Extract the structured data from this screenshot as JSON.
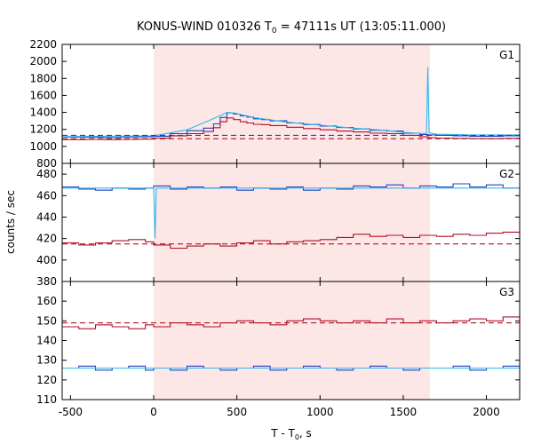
{
  "chart_data": {
    "type": "line",
    "title": {
      "prefix": "KONUS-WIND 010326 T",
      "sub": "0",
      "suffix": " = 47111s UT (13:05:11.000)"
    },
    "xlabel": {
      "prefix": "T - T",
      "sub": "0",
      "suffix": ", s"
    },
    "ylabel": "counts / sec",
    "xlim": [
      -550,
      2200
    ],
    "xticks": [
      -500,
      0,
      500,
      1000,
      1500,
      2000
    ],
    "xtick_labels": [
      "-500",
      "0",
      "500",
      "1000",
      "1500",
      "2000"
    ],
    "highlight_interval": [
      0,
      1660
    ],
    "highlight_color": "#fde6e6",
    "grid": false,
    "panels": [
      {
        "name": "G1",
        "ylim": [
          800,
          2200
        ],
        "yticks": [
          800,
          1000,
          1200,
          1400,
          1600,
          1800,
          2000,
          2200
        ],
        "ytick_labels": [
          "800",
          "1000",
          "1200",
          "1400",
          "1600",
          "1800",
          "2000",
          "2200"
        ],
        "series": [
          {
            "color": "#2040c0",
            "step": true,
            "points": [
              [
                -550,
                1110
              ],
              [
                -400,
                1108
              ],
              [
                -300,
                1105
              ],
              [
                -200,
                1110
              ],
              [
                -100,
                1112
              ],
              [
                0,
                1120
              ],
              [
                100,
                1150
              ],
              [
                200,
                1185
              ],
              [
                300,
                1215
              ],
              [
                360,
                1265
              ],
              [
                400,
                1340
              ],
              [
                440,
                1395
              ],
              [
                480,
                1380
              ],
              [
                520,
                1360
              ],
              [
                560,
                1345
              ],
              [
                600,
                1325
              ],
              [
                650,
                1315
              ],
              [
                700,
                1300
              ],
              [
                800,
                1275
              ],
              [
                900,
                1258
              ],
              [
                1000,
                1240
              ],
              [
                1100,
                1222
              ],
              [
                1200,
                1205
              ],
              [
                1300,
                1190
              ],
              [
                1400,
                1180
              ],
              [
                1500,
                1155
              ],
              [
                1600,
                1140
              ],
              [
                1650,
                1135
              ],
              [
                1700,
                1130
              ],
              [
                1800,
                1125
              ],
              [
                1900,
                1120
              ],
              [
                2000,
                1120
              ],
              [
                2100,
                1125
              ],
              [
                2200,
                1120
              ]
            ]
          },
          {
            "color": "#b01028",
            "step": true,
            "points": [
              [
                -550,
                1080
              ],
              [
                -400,
                1082
              ],
              [
                -300,
                1080
              ],
              [
                -200,
                1082
              ],
              [
                -100,
                1085
              ],
              [
                0,
                1098
              ],
              [
                100,
                1125
              ],
              [
                200,
                1150
              ],
              [
                300,
                1175
              ],
              [
                360,
                1220
              ],
              [
                400,
                1290
              ],
              [
                440,
                1335
              ],
              [
                480,
                1315
              ],
              [
                520,
                1290
              ],
              [
                560,
                1275
              ],
              [
                600,
                1260
              ],
              [
                650,
                1255
              ],
              [
                700,
                1245
              ],
              [
                800,
                1225
              ],
              [
                900,
                1210
              ],
              [
                1000,
                1195
              ],
              [
                1100,
                1180
              ],
              [
                1200,
                1170
              ],
              [
                1300,
                1155
              ],
              [
                1400,
                1150
              ],
              [
                1500,
                1130
              ],
              [
                1600,
                1112
              ],
              [
                1650,
                1102
              ],
              [
                1700,
                1098
              ],
              [
                1800,
                1095
              ],
              [
                1900,
                1092
              ],
              [
                2000,
                1090
              ],
              [
                2100,
                1095
              ],
              [
                2200,
                1092
              ]
            ]
          },
          {
            "color": "#30b8e8",
            "step": false,
            "points": [
              [
                -550,
                1115
              ],
              [
                0,
                1125
              ],
              [
                200,
                1195
              ],
              [
                400,
                1360
              ],
              [
                440,
                1400
              ],
              [
                480,
                1395
              ],
              [
                600,
                1340
              ],
              [
                800,
                1285
              ],
              [
                1000,
                1250
              ],
              [
                1200,
                1215
              ],
              [
                1400,
                1188
              ],
              [
                1500,
                1165
              ],
              [
                1640,
                1150
              ],
              [
                1648,
                1930
              ],
              [
                1656,
                1160
              ],
              [
                1700,
                1145
              ],
              [
                1900,
                1135
              ],
              [
                2200,
                1135
              ]
            ]
          },
          {
            "color": "#2040c0",
            "dashed": true,
            "points": [
              [
                -550,
                1130
              ],
              [
                2200,
                1130
              ]
            ]
          },
          {
            "color": "#b01028",
            "dashed": true,
            "points": [
              [
                -550,
                1090
              ],
              [
                2200,
                1090
              ]
            ]
          }
        ]
      },
      {
        "name": "G2",
        "ylim": [
          380,
          490
        ],
        "yticks": [
          380,
          400,
          420,
          440,
          460,
          480
        ],
        "ytick_labels": [
          "380",
          "400",
          "420",
          "440",
          "460",
          "480"
        ],
        "series": [
          {
            "color": "#2040c0",
            "step": true,
            "points": [
              [
                -550,
                468
              ],
              [
                -450,
                466
              ],
              [
                -350,
                465
              ],
              [
                -250,
                467
              ],
              [
                -150,
                466
              ],
              [
                -50,
                467
              ],
              [
                0,
                469
              ],
              [
                100,
                466
              ],
              [
                200,
                468
              ],
              [
                300,
                467
              ],
              [
                400,
                468
              ],
              [
                500,
                465
              ],
              [
                600,
                467
              ],
              [
                700,
                466
              ],
              [
                800,
                468
              ],
              [
                900,
                465
              ],
              [
                1000,
                467
              ],
              [
                1100,
                466
              ],
              [
                1200,
                469
              ],
              [
                1300,
                468
              ],
              [
                1400,
                470
              ],
              [
                1500,
                467
              ],
              [
                1600,
                469
              ],
              [
                1700,
                468
              ],
              [
                1800,
                471
              ],
              [
                1900,
                468
              ],
              [
                2000,
                470
              ],
              [
                2100,
                467
              ],
              [
                2200,
                469
              ]
            ]
          },
          {
            "color": "#b01028",
            "step": true,
            "points": [
              [
                -550,
                416
              ],
              [
                -450,
                414
              ],
              [
                -350,
                416
              ],
              [
                -250,
                418
              ],
              [
                -150,
                419
              ],
              [
                -50,
                417
              ],
              [
                0,
                414
              ],
              [
                100,
                411
              ],
              [
                200,
                413
              ],
              [
                300,
                415
              ],
              [
                400,
                413
              ],
              [
                500,
                416
              ],
              [
                600,
                418
              ],
              [
                700,
                415
              ],
              [
                800,
                417
              ],
              [
                900,
                418
              ],
              [
                1000,
                419
              ],
              [
                1100,
                421
              ],
              [
                1200,
                424
              ],
              [
                1300,
                422
              ],
              [
                1400,
                423
              ],
              [
                1500,
                421
              ],
              [
                1600,
                423
              ],
              [
                1700,
                422
              ],
              [
                1800,
                424
              ],
              [
                1900,
                423
              ],
              [
                2000,
                425
              ],
              [
                2100,
                426
              ],
              [
                2200,
                424
              ]
            ]
          },
          {
            "color": "#30b8e8",
            "step": false,
            "points": [
              [
                -550,
                467
              ],
              [
                -1,
                467
              ],
              [
                0,
                467
              ],
              [
                8,
                420
              ],
              [
                16,
                467
              ],
              [
                2200,
                467
              ]
            ]
          },
          {
            "color": "#b01028",
            "dashed": true,
            "points": [
              [
                -550,
                415
              ],
              [
                2200,
                415
              ]
            ]
          }
        ]
      },
      {
        "name": "G3",
        "ylim": [
          110,
          170
        ],
        "yticks": [
          110,
          120,
          130,
          140,
          150,
          160
        ],
        "ytick_labels": [
          "110",
          "120",
          "130",
          "140",
          "150",
          "160"
        ],
        "series": [
          {
            "color": "#b01028",
            "step": true,
            "points": [
              [
                -550,
                147
              ],
              [
                -450,
                146
              ],
              [
                -350,
                148
              ],
              [
                -250,
                147
              ],
              [
                -150,
                146
              ],
              [
                -50,
                148
              ],
              [
                0,
                147
              ],
              [
                100,
                149
              ],
              [
                200,
                148
              ],
              [
                300,
                147
              ],
              [
                400,
                149
              ],
              [
                500,
                150
              ],
              [
                600,
                149
              ],
              [
                700,
                148
              ],
              [
                800,
                150
              ],
              [
                900,
                151
              ],
              [
                1000,
                150
              ],
              [
                1100,
                149
              ],
              [
                1200,
                150
              ],
              [
                1300,
                149
              ],
              [
                1400,
                151
              ],
              [
                1500,
                149
              ],
              [
                1600,
                150
              ],
              [
                1700,
                149
              ],
              [
                1800,
                150
              ],
              [
                1900,
                151
              ],
              [
                2000,
                150
              ],
              [
                2100,
                152
              ],
              [
                2200,
                151
              ]
            ]
          },
          {
            "color": "#2040c0",
            "step": true,
            "points": [
              [
                -550,
                126
              ],
              [
                -450,
                127
              ],
              [
                -350,
                125
              ],
              [
                -250,
                126
              ],
              [
                -150,
                127
              ],
              [
                -50,
                125
              ],
              [
                0,
                126
              ],
              [
                100,
                125
              ],
              [
                200,
                127
              ],
              [
                300,
                126
              ],
              [
                400,
                125
              ],
              [
                500,
                126
              ],
              [
                600,
                127
              ],
              [
                700,
                125
              ],
              [
                800,
                126
              ],
              [
                900,
                127
              ],
              [
                1000,
                126
              ],
              [
                1100,
                125
              ],
              [
                1200,
                126
              ],
              [
                1300,
                127
              ],
              [
                1400,
                126
              ],
              [
                1500,
                125
              ],
              [
                1600,
                126
              ],
              [
                1700,
                126
              ],
              [
                1800,
                127
              ],
              [
                1900,
                125
              ],
              [
                2000,
                126
              ],
              [
                2100,
                127
              ],
              [
                2200,
                126
              ]
            ]
          },
          {
            "color": "#30b8e8",
            "step": false,
            "points": [
              [
                -550,
                126
              ],
              [
                2200,
                126
              ]
            ]
          },
          {
            "color": "#b01028",
            "dashed": true,
            "points": [
              [
                -550,
                149
              ],
              [
                2200,
                149
              ]
            ]
          }
        ]
      }
    ]
  }
}
